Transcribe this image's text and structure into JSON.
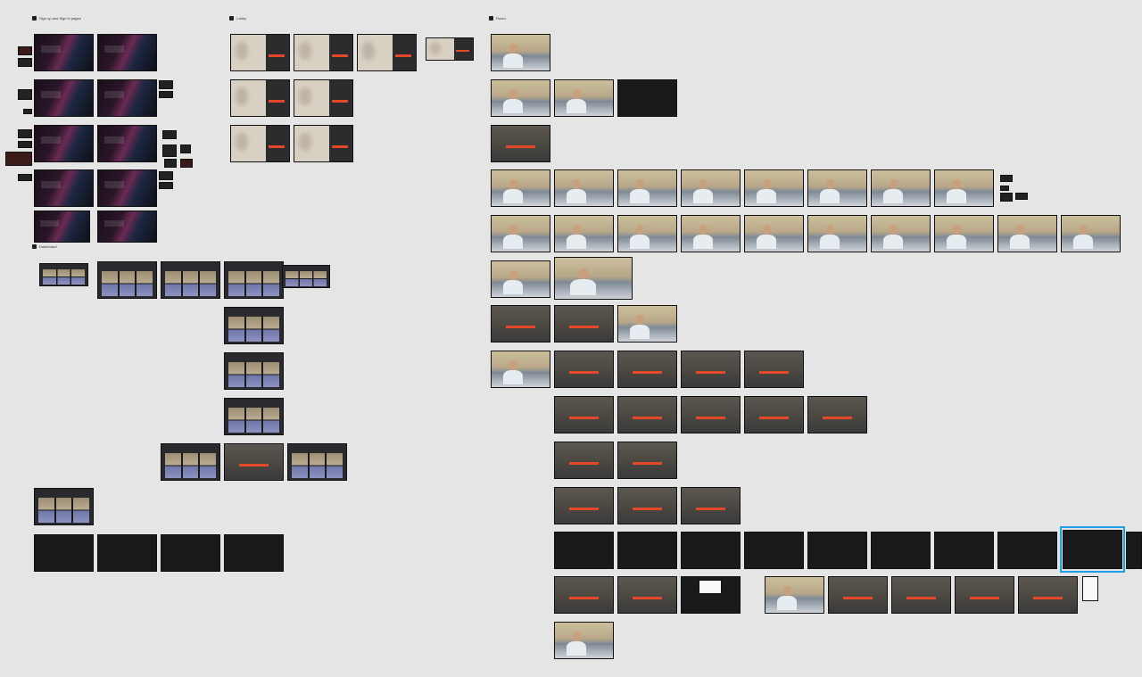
{
  "canvas": {
    "sections": [
      {
        "id": "signup",
        "label": "Sign up and Sign in pages"
      },
      {
        "id": "lobby",
        "label": "Lobby"
      },
      {
        "id": "room",
        "label": "Room"
      },
      {
        "id": "dashboard",
        "label": "Dashboard"
      }
    ],
    "selection_color": "#1c9ee8"
  }
}
